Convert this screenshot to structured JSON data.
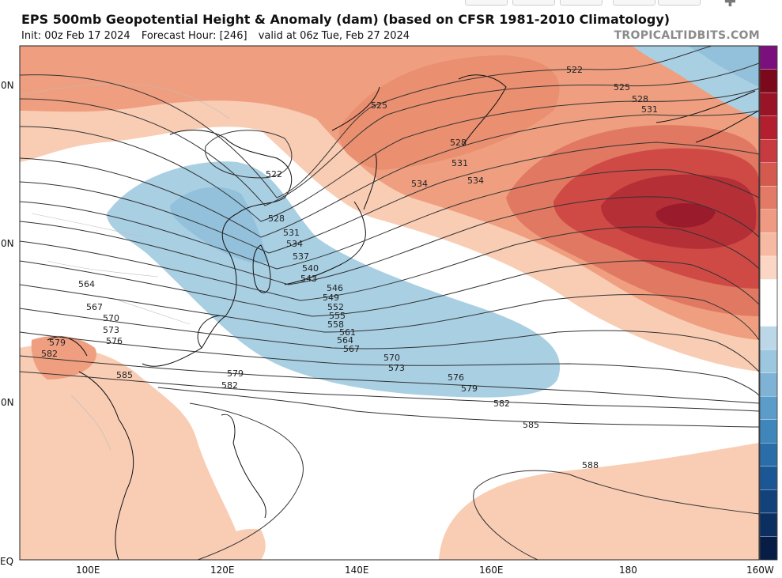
{
  "header": {
    "title": "EPS 500mb Geopotential Height & Anomaly (dam) (based on CFSR 1981-2010 Climatology)",
    "init": "Init: 00z Feb 17 2024",
    "forecast_hour": "Forecast Hour: [246]",
    "valid": "valid at 06z Tue, Feb 27 2024",
    "brand": "TROPICALTIDBITS.COM"
  },
  "map": {
    "lat_labels": [
      "0N",
      "0N",
      "0N",
      "EQ"
    ],
    "lon_labels": [
      "100E",
      "120E",
      "140E",
      "160E",
      "180",
      "160W"
    ],
    "contour_labels": [
      "522",
      "522",
      "525",
      "525",
      "528",
      "528",
      "528",
      "531",
      "531",
      "531",
      "534",
      "534",
      "534",
      "537",
      "540",
      "543",
      "546",
      "549",
      "552",
      "555",
      "558",
      "561",
      "564",
      "564",
      "567",
      "567",
      "570",
      "570",
      "573",
      "573",
      "576",
      "576",
      "579",
      "579",
      "579",
      "582",
      "582",
      "582",
      "585",
      "585",
      "588"
    ],
    "colors": {
      "negative": "#a9cfe3",
      "positive_light": "#f9ccb4",
      "positive_mid": "#ef9f80",
      "positive_strong": "#cf4a45",
      "positive_max": "#9a1c2c"
    }
  },
  "colorbar": {
    "swatches": [
      "#7b0f7e",
      "#7a0a1b",
      "#9a1427",
      "#b31f2e",
      "#c73a3f",
      "#d45a50",
      "#e27a67",
      "#ef9b83",
      "#f6b9a1",
      "#fbd6c5",
      "#ffffff",
      "#ffffff",
      "#bcd8e8",
      "#9dc7df",
      "#7eb3d5",
      "#5b9dc8",
      "#3f86ba",
      "#2a6ea9",
      "#1c5795",
      "#13427b",
      "#0c2f62",
      "#071d45"
    ]
  }
}
